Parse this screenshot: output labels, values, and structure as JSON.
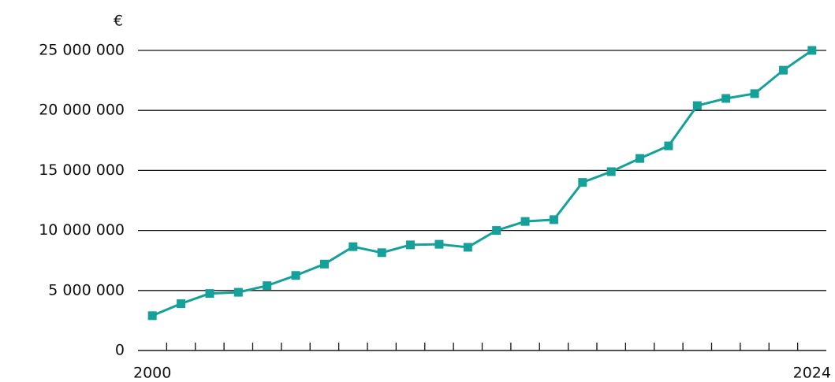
{
  "chart_data": {
    "type": "line",
    "unit_label": "€",
    "categories": [
      "2000",
      null,
      null,
      null,
      null,
      null,
      null,
      null,
      null,
      null,
      null,
      null,
      null,
      null,
      null,
      null,
      null,
      null,
      null,
      null,
      null,
      null,
      null,
      "2024"
    ],
    "series": [
      {
        "color": "#15a09a",
        "values": [
          2900000,
          3900000,
          4750000,
          4850000,
          5400000,
          6250000,
          7200000,
          8650000,
          8150000,
          8800000,
          8850000,
          8600000,
          10000000,
          10750000,
          10900000,
          14000000,
          14900000,
          16000000,
          17050000,
          20400000,
          21000000,
          21400000,
          23350000,
          25000000
        ]
      }
    ],
    "ylim": [
      0,
      25000000
    ],
    "yticks": [
      {
        "value": 0,
        "label": "0"
      },
      {
        "value": 5000000,
        "label": "5 000 000"
      },
      {
        "value": 10000000,
        "label": "10 000 000"
      },
      {
        "value": 15000000,
        "label": "15 000 000"
      },
      {
        "value": 20000000,
        "label": "20 000 000"
      },
      {
        "value": 25000000,
        "label": "25 000 000"
      }
    ],
    "grid": true
  }
}
